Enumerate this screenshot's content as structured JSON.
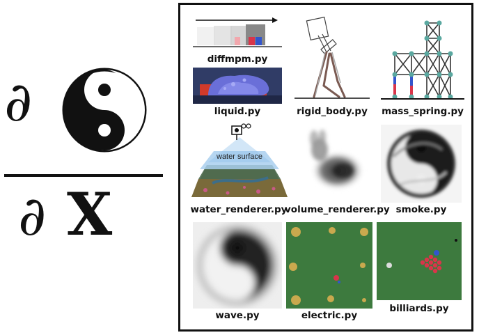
{
  "formula": {
    "numerator_symbol": "∂",
    "denominator_symbol": "∂",
    "denominator_var": "X",
    "numerator_icon": "yin-yang-icon"
  },
  "examples": [
    {
      "id": "diffmpm",
      "label": "diffmpm.py"
    },
    {
      "id": "liquid",
      "label": "liquid.py"
    },
    {
      "id": "rigid_body",
      "label": "rigid_body.py"
    },
    {
      "id": "mass_spring",
      "label": "mass_spring.py"
    },
    {
      "id": "water_renderer",
      "label": "water_renderer.py",
      "overlay_text": "water surface"
    },
    {
      "id": "volume_renderer",
      "label": "volume_renderer.py"
    },
    {
      "id": "smoke",
      "label": "smoke.py"
    },
    {
      "id": "wave",
      "label": "wave.py"
    },
    {
      "id": "electric",
      "label": "electric.py"
    },
    {
      "id": "billiards",
      "label": "billiards.py"
    }
  ],
  "colors": {
    "green_field": "#3d7a3e",
    "gold": "#c9a94e",
    "red": "#d9354a",
    "blue": "#3355cc",
    "teal_node": "#5aa8a0",
    "liquid_blue": "#6a6fd8"
  }
}
